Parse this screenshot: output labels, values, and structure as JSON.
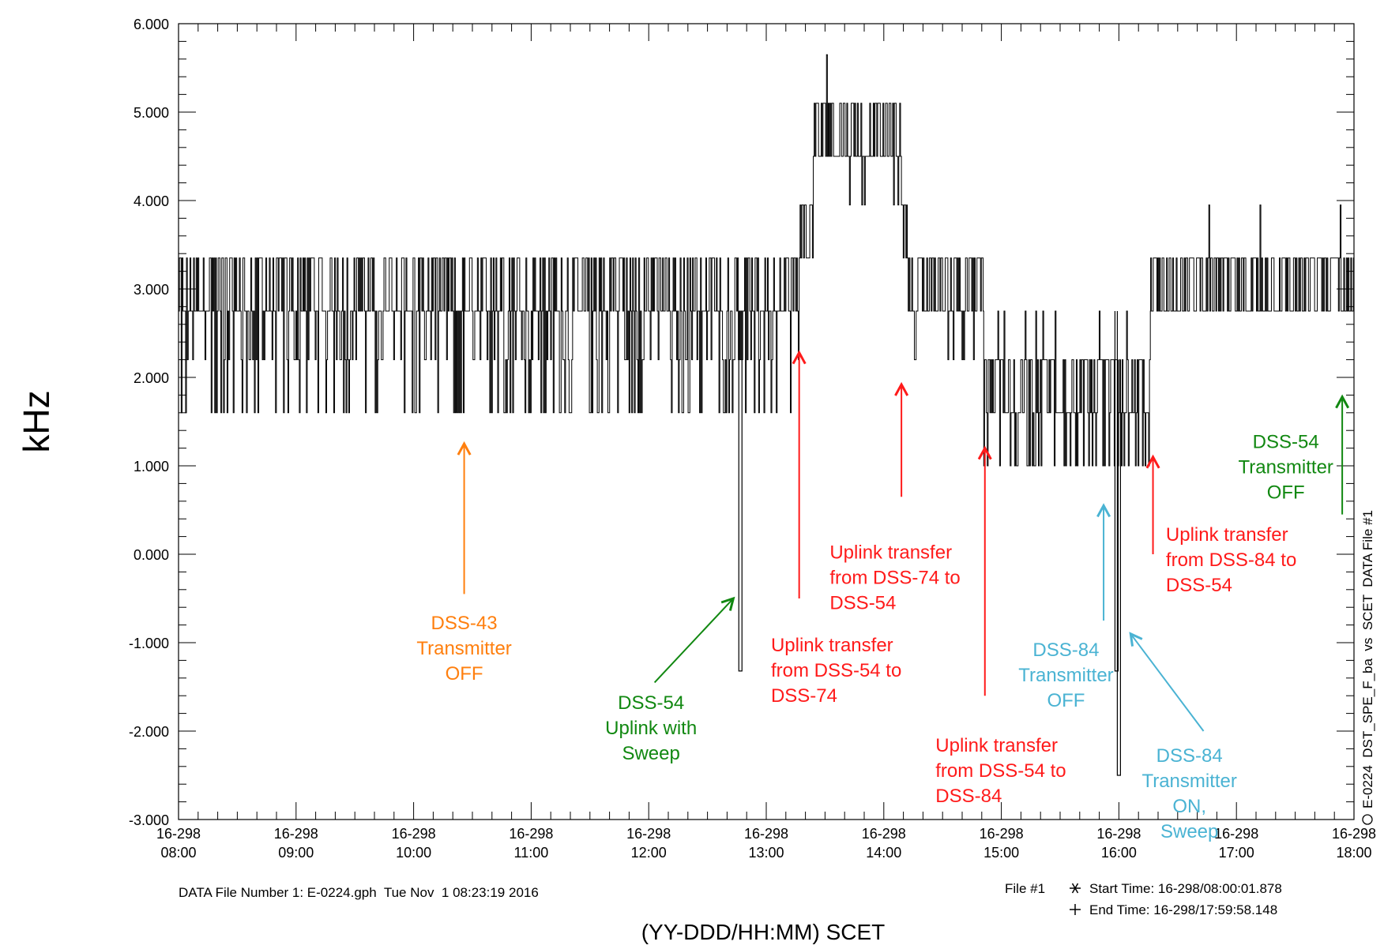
{
  "chart_data": {
    "type": "line",
    "ylabel": "kHz",
    "xlabel": "(YY-DDD/HH:MM) SCET",
    "right_label": "E-0224  DST_SPE_F_ba  vs  SCET  DATA File #1",
    "footer": {
      "file_info": "DATA File Number 1: E-0224.gph  Tue Nov  1 08:23:19 2016",
      "file_tag": "File #1",
      "start_time": "Start Time: 16-298/08:00:01.878",
      "end_time": "End Time: 16-298/17:59:58.148"
    },
    "ylim": [
      -3.0,
      6.0
    ],
    "xlim_hours": [
      8,
      18
    ],
    "y_ticks": [
      "6.000",
      "5.000",
      "4.000",
      "3.000",
      "2.000",
      "1.000",
      "0.000",
      "-1.000",
      "-2.000",
      "-3.000"
    ],
    "x_ticks": [
      {
        "day": "16-298",
        "time": "08:00"
      },
      {
        "day": "16-298",
        "time": "09:00"
      },
      {
        "day": "16-298",
        "time": "10:00"
      },
      {
        "day": "16-298",
        "time": "11:00"
      },
      {
        "day": "16-298",
        "time": "12:00"
      },
      {
        "day": "16-298",
        "time": "13:00"
      },
      {
        "day": "16-298",
        "time": "14:00"
      },
      {
        "day": "16-298",
        "time": "15:00"
      },
      {
        "day": "16-298",
        "time": "16:00"
      },
      {
        "day": "16-298",
        "time": "17:00"
      },
      {
        "day": "16-298",
        "time": "18:00"
      }
    ],
    "segments": [
      {
        "start": 8.0,
        "end": 13.28,
        "levels": [
          2.75,
          3.35
        ],
        "low_dips": [
          2.2,
          1.6
        ],
        "dip_density": 0.55
      },
      {
        "start": 13.28,
        "end": 13.4,
        "levels": [
          3.35,
          3.95
        ],
        "low_dips": [],
        "dip_density": 0.0
      },
      {
        "start": 13.4,
        "end": 14.15,
        "levels": [
          4.5,
          5.1
        ],
        "low_dips": [
          3.95
        ],
        "dip_density": 0.25,
        "spikes": [
          5.65
        ]
      },
      {
        "start": 14.15,
        "end": 14.2,
        "levels": [
          3.95,
          3.35
        ],
        "low_dips": [],
        "dip_density": 0.0
      },
      {
        "start": 14.2,
        "end": 14.85,
        "levels": [
          2.75,
          3.35
        ],
        "low_dips": [
          2.2
        ],
        "dip_density": 0.15
      },
      {
        "start": 14.85,
        "end": 16.27,
        "levels": [
          1.6,
          2.2
        ],
        "low_dips": [
          1.0
        ],
        "dip_density": 0.35,
        "spikes": [
          2.75
        ]
      },
      {
        "start": 16.27,
        "end": 18.0,
        "levels": [
          2.75,
          3.35
        ],
        "low_dips": [],
        "dip_density": 0.0,
        "spikes": [
          3.95
        ]
      }
    ],
    "deep_spikes": [
      {
        "x": 12.78,
        "y": -1.32
      },
      {
        "x": 15.98,
        "y": -1.32
      },
      {
        "x": 16.0,
        "y": -2.5
      }
    ],
    "annotations": [
      {
        "lines": [
          "DSS-43",
          "Transmitter",
          "OFF"
        ],
        "color": "#ff7f0e",
        "text_x": 10.43,
        "text_y": -0.85,
        "arrow_from": [
          10.43,
          -0.45
        ],
        "arrow_to": [
          10.43,
          1.25
        ]
      },
      {
        "lines": [
          "DSS-54",
          "Uplink with",
          "Sweep"
        ],
        "color": "#118811",
        "text_x": 12.02,
        "text_y": -1.75,
        "arrow_from": [
          12.05,
          -1.45
        ],
        "arrow_to": [
          12.72,
          -0.5
        ]
      },
      {
        "lines": [
          "Uplink transfer",
          "from DSS-54 to",
          "DSS-74"
        ],
        "color": "#ff1a1a",
        "text_x": 13.04,
        "text_y": -1.1,
        "align": "start",
        "arrow_from": [
          13.28,
          -0.5
        ],
        "arrow_to": [
          13.28,
          2.28
        ]
      },
      {
        "lines": [
          "Uplink transfer",
          "from DSS-74 to",
          "DSS-54"
        ],
        "color": "#ff1a1a",
        "text_x": 13.54,
        "text_y": -0.05,
        "align": "start",
        "arrow_from": [
          14.15,
          0.65
        ],
        "arrow_to": [
          14.15,
          1.92
        ]
      },
      {
        "lines": [
          "Uplink transfer",
          "from DSS-54 to",
          "DSS-84"
        ],
        "color": "#ff1a1a",
        "text_x": 14.44,
        "text_y": -2.23,
        "align": "start",
        "arrow_from": [
          14.86,
          -1.6
        ],
        "arrow_to": [
          14.86,
          1.2
        ]
      },
      {
        "lines": [
          "DSS-84",
          "Transmitter",
          "OFF"
        ],
        "color": "#4ab3d3",
        "text_x": 15.55,
        "text_y": -1.15,
        "arrow_from": [
          15.87,
          -0.75
        ],
        "arrow_to": [
          15.87,
          0.55
        ]
      },
      {
        "lines": [
          "DSS-84",
          "Transmitter",
          "ON,",
          "Sweep"
        ],
        "color": "#4ab3d3",
        "text_x": 16.6,
        "text_y": -2.35,
        "arrow_from": [
          16.72,
          -2.0
        ],
        "arrow_to": [
          16.1,
          -0.9
        ]
      },
      {
        "lines": [
          "Uplink transfer",
          "from DSS-84 to",
          "DSS-54"
        ],
        "color": "#ff1a1a",
        "text_x": 16.4,
        "text_y": 0.15,
        "align": "start",
        "arrow_from": [
          16.29,
          0.0
        ],
        "arrow_to": [
          16.29,
          1.1
        ]
      },
      {
        "lines": [
          "DSS-54",
          "Transmitter",
          "OFF"
        ],
        "color": "#118811",
        "text_x": 17.42,
        "text_y": 1.2,
        "arrow_from": [
          17.9,
          0.45
        ],
        "arrow_to": [
          17.9,
          1.78
        ]
      }
    ]
  }
}
